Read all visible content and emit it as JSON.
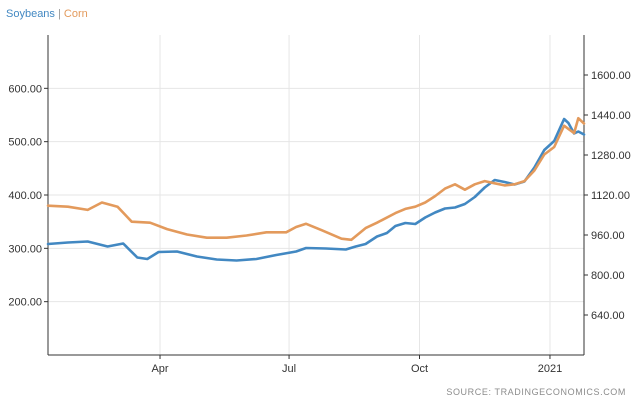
{
  "colors": {
    "soybeans": "#4288c2",
    "corn": "#e39a5c",
    "grid": "#e6e6e6",
    "axis": "#333333"
  },
  "legend": {
    "separator": "|"
  },
  "source": "SOURCE: TRADINGECONOMICS.COM",
  "chart_data": {
    "type": "line",
    "title": "",
    "xlabel": "",
    "ylabel_left": "",
    "ylabel_right": "",
    "grid": true,
    "legend_position": "top-left",
    "x_range": [
      "2020-01-13",
      "2021-01-25"
    ],
    "x_ticks": [
      {
        "date": "2020-04-01",
        "label": "Apr"
      },
      {
        "date": "2020-07-01",
        "label": "Jul"
      },
      {
        "date": "2020-10-01",
        "label": "Oct"
      },
      {
        "date": "2021-01-01",
        "label": "2021"
      }
    ],
    "left_axis": {
      "series": "Corn",
      "ylim": [
        100,
        700
      ],
      "ticks": [
        "200.00",
        "300.00",
        "400.00",
        "500.00",
        "600.00"
      ]
    },
    "right_axis": {
      "series": "Soybeans",
      "ylim": [
        480,
        1760
      ],
      "ticks": [
        "640.00",
        "800.00",
        "960.00",
        "1120.00",
        "1280.00",
        "1440.00",
        "1600.00"
      ]
    },
    "series": [
      {
        "name": "Soybeans",
        "axis": "right",
        "points": [
          [
            "2020-01-13",
            924
          ],
          [
            "2020-01-27",
            930
          ],
          [
            "2020-02-10",
            934
          ],
          [
            "2020-02-24",
            914
          ],
          [
            "2020-03-06",
            926
          ],
          [
            "2020-03-16",
            870
          ],
          [
            "2020-03-23",
            864
          ],
          [
            "2020-03-31",
            892
          ],
          [
            "2020-04-13",
            894
          ],
          [
            "2020-04-27",
            874
          ],
          [
            "2020-05-11",
            862
          ],
          [
            "2020-05-25",
            858
          ],
          [
            "2020-06-08",
            864
          ],
          [
            "2020-06-22",
            880
          ],
          [
            "2020-07-06",
            894
          ],
          [
            "2020-07-13",
            908
          ],
          [
            "2020-07-27",
            906
          ],
          [
            "2020-08-10",
            902
          ],
          [
            "2020-08-17",
            914
          ],
          [
            "2020-08-24",
            924
          ],
          [
            "2020-09-01",
            954
          ],
          [
            "2020-09-08",
            968
          ],
          [
            "2020-09-14",
            996
          ],
          [
            "2020-09-21",
            1008
          ],
          [
            "2020-09-28",
            1004
          ],
          [
            "2020-10-05",
            1030
          ],
          [
            "2020-10-12",
            1050
          ],
          [
            "2020-10-19",
            1066
          ],
          [
            "2020-10-26",
            1070
          ],
          [
            "2020-11-02",
            1084
          ],
          [
            "2020-11-09",
            1112
          ],
          [
            "2020-11-16",
            1150
          ],
          [
            "2020-11-23",
            1180
          ],
          [
            "2020-11-30",
            1172
          ],
          [
            "2020-12-07",
            1162
          ],
          [
            "2020-12-14",
            1174
          ],
          [
            "2020-12-21",
            1230
          ],
          [
            "2020-12-28",
            1300
          ],
          [
            "2021-01-04",
            1336
          ],
          [
            "2021-01-11",
            1424
          ],
          [
            "2021-01-14",
            1408
          ],
          [
            "2021-01-18",
            1366
          ],
          [
            "2021-01-21",
            1374
          ],
          [
            "2021-01-25",
            1362
          ]
        ]
      },
      {
        "name": "Corn",
        "axis": "left",
        "points": [
          [
            "2020-01-13",
            380
          ],
          [
            "2020-01-27",
            378
          ],
          [
            "2020-02-10",
            372
          ],
          [
            "2020-02-20",
            386
          ],
          [
            "2020-03-02",
            378
          ],
          [
            "2020-03-12",
            350
          ],
          [
            "2020-03-25",
            348
          ],
          [
            "2020-04-06",
            336
          ],
          [
            "2020-04-20",
            326
          ],
          [
            "2020-05-04",
            320
          ],
          [
            "2020-05-18",
            320
          ],
          [
            "2020-06-01",
            324
          ],
          [
            "2020-06-15",
            330
          ],
          [
            "2020-06-29",
            330
          ],
          [
            "2020-07-06",
            340
          ],
          [
            "2020-07-13",
            346
          ],
          [
            "2020-07-24",
            334
          ],
          [
            "2020-08-07",
            318
          ],
          [
            "2020-08-14",
            316
          ],
          [
            "2020-08-24",
            338
          ],
          [
            "2020-09-01",
            348
          ],
          [
            "2020-09-14",
            366
          ],
          [
            "2020-09-21",
            374
          ],
          [
            "2020-09-28",
            378
          ],
          [
            "2020-10-05",
            386
          ],
          [
            "2020-10-12",
            398
          ],
          [
            "2020-10-19",
            412
          ],
          [
            "2020-10-26",
            420
          ],
          [
            "2020-11-02",
            410
          ],
          [
            "2020-11-09",
            420
          ],
          [
            "2020-11-16",
            426
          ],
          [
            "2020-11-23",
            422
          ],
          [
            "2020-11-30",
            418
          ],
          [
            "2020-12-07",
            420
          ],
          [
            "2020-12-14",
            426
          ],
          [
            "2020-12-21",
            446
          ],
          [
            "2020-12-28",
            476
          ],
          [
            "2021-01-04",
            490
          ],
          [
            "2021-01-11",
            530
          ],
          [
            "2021-01-14",
            524
          ],
          [
            "2021-01-18",
            516
          ],
          [
            "2021-01-21",
            544
          ],
          [
            "2021-01-25",
            534
          ]
        ]
      }
    ]
  }
}
